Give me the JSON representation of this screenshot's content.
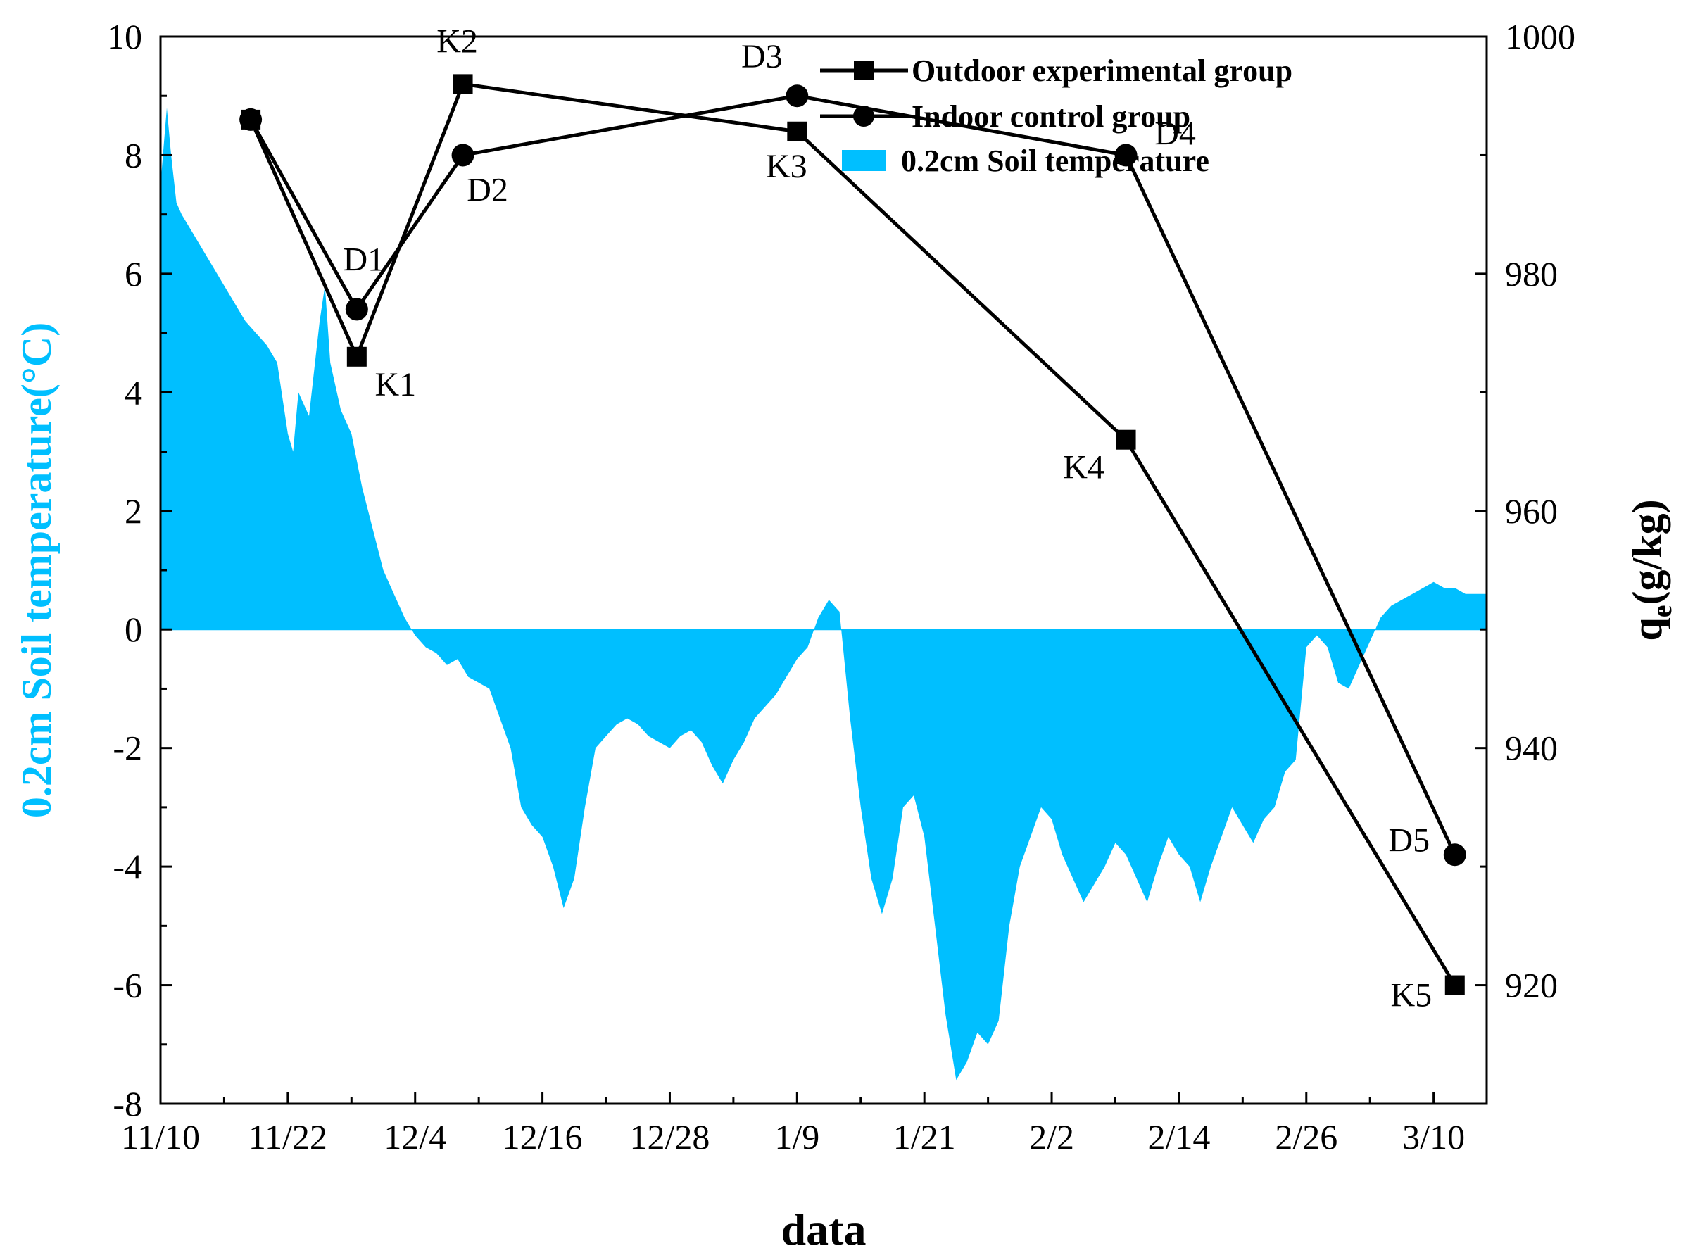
{
  "chart_data": {
    "type": "line",
    "xlabel": "data",
    "ylabel_left": "0.2cm Soil temperature(°C)",
    "ylabel_right": "qe(g/kg)",
    "ylabel_right_main": "q",
    "ylabel_right_sub": "e",
    "ylabel_right_unit": "(g/kg)",
    "colors": {
      "temperature": "#00BFFF",
      "series": "#000000"
    },
    "x_ticks": [
      "11/10",
      "11/22",
      "12/4",
      "12/16",
      "12/28",
      "1/9",
      "1/21",
      "2/2",
      "2/14",
      "2/26",
      "3/10"
    ],
    "x_tick_days": [
      0,
      12,
      24,
      36,
      48,
      60,
      72,
      84,
      96,
      108,
      120
    ],
    "xlim_days": [
      0,
      125
    ],
    "y_left": {
      "lim": [
        -8,
        10
      ],
      "ticks": [
        "-8",
        "-6",
        "-4",
        "-2",
        "0",
        "2",
        "4",
        "6",
        "8",
        "10"
      ]
    },
    "y_right": {
      "lim": [
        910,
        1000
      ],
      "ticks": [
        "920",
        "940",
        "960",
        "980",
        "1000"
      ]
    },
    "legend_position": "top-right",
    "legend": [
      {
        "label": "Outdoor experimental group",
        "marker": "square"
      },
      {
        "label": "Indoor control group",
        "marker": "circle"
      },
      {
        "label": "0.2cm Soil temperature",
        "marker": "fill"
      }
    ],
    "series": [
      {
        "name": "Outdoor experimental group",
        "marker": "square",
        "x_days": [
          8.5,
          18.5,
          28.5,
          60,
          91,
          122
        ],
        "values": [
          993,
          973,
          996,
          992,
          966,
          920
        ],
        "labels": [
          "",
          "K1",
          "K2",
          "K3",
          "K4",
          "K5"
        ]
      },
      {
        "name": "Indoor control group",
        "marker": "circle",
        "x_days": [
          8.5,
          18.5,
          28.5,
          60,
          91,
          122
        ],
        "values": [
          993,
          977,
          990,
          995,
          990,
          931
        ],
        "labels": [
          "",
          "D1",
          "D2",
          "D3",
          "D4",
          "D5"
        ]
      }
    ],
    "temperature": {
      "name": "0.2cm Soil temperature",
      "type": "area",
      "x_days": [
        0,
        0.6,
        1,
        1.5,
        2,
        3,
        4,
        5,
        6,
        7,
        8,
        9,
        10,
        11,
        12,
        12.5,
        13,
        14,
        15,
        15.5,
        16,
        17,
        18,
        19,
        20,
        21,
        22,
        23,
        24,
        25,
        26,
        27,
        28,
        29,
        30,
        31,
        32,
        33,
        34,
        35,
        36,
        37,
        38,
        39,
        40,
        41,
        42,
        43,
        44,
        45,
        46,
        47,
        48,
        49,
        50,
        51,
        52,
        53,
        54,
        55,
        56,
        57,
        58,
        59,
        60,
        61,
        62,
        63,
        64,
        65,
        66,
        67,
        68,
        69,
        70,
        71,
        72,
        73,
        74,
        75,
        76,
        77,
        78,
        79,
        80,
        81,
        82,
        83,
        84,
        85,
        86,
        87,
        88,
        89,
        90,
        91,
        92,
        93,
        94,
        95,
        96,
        97,
        98,
        99,
        100,
        101,
        102,
        103,
        104,
        105,
        106,
        107,
        108,
        109,
        110,
        111,
        112,
        113,
        114,
        115,
        116,
        117,
        118,
        119,
        120,
        121,
        122,
        123,
        124,
        125
      ],
      "values": [
        7.5,
        8.8,
        8.0,
        7.2,
        7.0,
        6.7,
        6.4,
        6.1,
        5.8,
        5.5,
        5.2,
        5.0,
        4.8,
        4.5,
        3.3,
        3.0,
        4.0,
        3.6,
        5.2,
        5.8,
        4.5,
        3.7,
        3.3,
        2.4,
        1.7,
        1.0,
        0.6,
        0.2,
        -0.1,
        -0.3,
        -0.4,
        -0.6,
        -0.5,
        -0.8,
        -0.9,
        -1.0,
        -1.5,
        -2.0,
        -3.0,
        -3.3,
        -3.5,
        -4.0,
        -4.7,
        -4.2,
        -3.0,
        -2.0,
        -1.8,
        -1.6,
        -1.5,
        -1.6,
        -1.8,
        -1.9,
        -2.0,
        -1.8,
        -1.7,
        -1.9,
        -2.3,
        -2.6,
        -2.2,
        -1.9,
        -1.5,
        -1.3,
        -1.1,
        -0.8,
        -0.5,
        -0.3,
        0.2,
        0.5,
        0.3,
        -1.5,
        -3.0,
        -4.2,
        -4.8,
        -4.2,
        -3.0,
        -2.8,
        -3.5,
        -5.0,
        -6.5,
        -7.6,
        -7.3,
        -6.8,
        -7.0,
        -6.6,
        -5.0,
        -4.0,
        -3.5,
        -3.0,
        -3.2,
        -3.8,
        -4.2,
        -4.6,
        -4.3,
        -4.0,
        -3.6,
        -3.8,
        -4.2,
        -4.6,
        -4.0,
        -3.5,
        -3.8,
        -4.0,
        -4.6,
        -4.0,
        -3.5,
        -3.0,
        -3.3,
        -3.6,
        -3.2,
        -3.0,
        -2.4,
        -2.2,
        -0.3,
        -0.1,
        -0.3,
        -0.9,
        -1.0,
        -0.6,
        -0.2,
        0.2,
        0.4,
        0.5,
        0.6,
        0.7,
        0.8,
        0.7,
        0.7,
        0.6,
        0.6,
        0.6
      ]
    }
  }
}
